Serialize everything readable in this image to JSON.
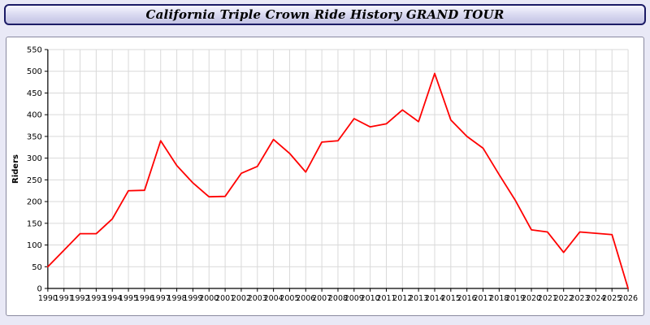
{
  "window": {
    "title": "California Triple Crown Ride History GRAND TOUR"
  },
  "chart_data": {
    "type": "line",
    "title": "California Triple Crown Ride History GRAND TOUR",
    "xlabel": "",
    "ylabel": "Riders",
    "x": [
      1990,
      1991,
      1992,
      1993,
      1994,
      1995,
      1996,
      1997,
      1998,
      1999,
      2000,
      2001,
      2002,
      2003,
      2004,
      2005,
      2006,
      2007,
      2008,
      2009,
      2010,
      2011,
      2012,
      2013,
      2014,
      2015,
      2016,
      2017,
      2018,
      2019,
      2020,
      2021,
      2022,
      2023,
      2024,
      2025,
      2026
    ],
    "series": [
      {
        "name": "Riders",
        "color": "#ff0000",
        "values": [
          50,
          88,
          126,
          126,
          160,
          225,
          226,
          340,
          283,
          243,
          211,
          212,
          265,
          281,
          343,
          311,
          268,
          337,
          340,
          391,
          372,
          379,
          411,
          384,
          495,
          388,
          350,
          323,
          262,
          203,
          135,
          130,
          83,
          130,
          127,
          124,
          0
        ]
      }
    ],
    "ylim": [
      0,
      550
    ],
    "ytick_step": 50,
    "grid": true,
    "grid_color": "#d9d9d9",
    "axis_color": "#000000",
    "legend_position": "none",
    "plot_background": "#ffffff"
  }
}
